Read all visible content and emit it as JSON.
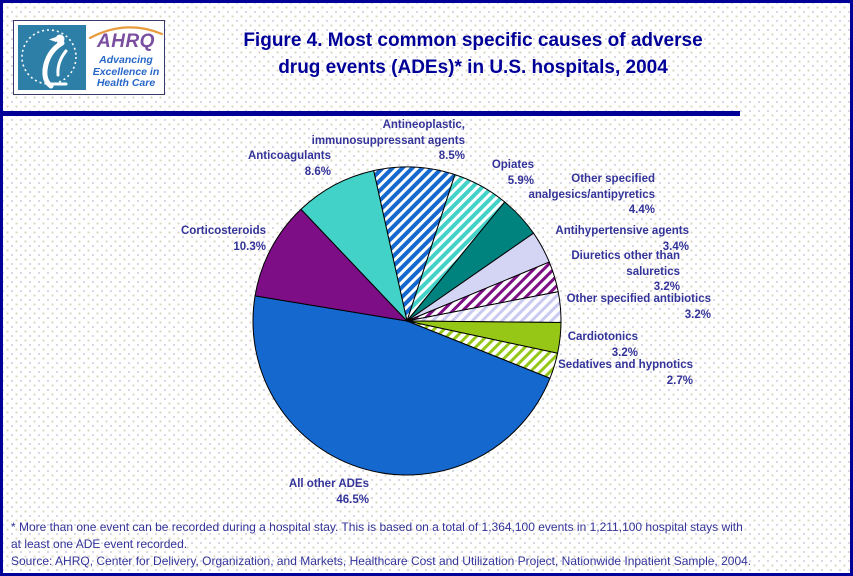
{
  "header": {
    "logo": {
      "ahrq_acronym": "AHRQ",
      "tagline_lines": [
        "Advancing",
        "Excellence in",
        "Health Care"
      ]
    },
    "title_lines": [
      "Figure 4. Most common specific causes of adverse",
      "drug events (ADEs)* in U.S. hospitals, 2004"
    ]
  },
  "colors": {
    "accent_navy": "#000099",
    "label_text": "#333399",
    "seal_teal": "#2E7FA8",
    "ahrq_purple": "#7B4FA0",
    "tagline_blue": "#2767C8",
    "arc_orange": "#E89B3C"
  },
  "chart_data": {
    "type": "pie",
    "title": "Figure 4. Most common specific causes of adverse drug events (ADEs)* in U.S. hospitals, 2004",
    "unit": "percent of ADE events",
    "start_angle_deg_from_12_oclock": -12.5,
    "direction": "clockwise",
    "legend_position": "labels around pie",
    "categories": [
      "Antineoplastic, immunosuppressant agents",
      "Opiates",
      "Other specified analgesics/antipyretics",
      "Antihypertensive agents",
      "Diuretics other than saluretics",
      "Other specified antibiotics",
      "Cardiotonics",
      "Sedatives and hypnotics",
      "All other ADEs",
      "Corticosteroids",
      "Anticoagulants"
    ],
    "values": [
      8.5,
      5.9,
      4.4,
      3.4,
      3.2,
      3.2,
      3.2,
      2.7,
      46.5,
      10.3,
      8.6
    ],
    "slices": [
      {
        "name": "Antineoplastic, immunosuppressant agents",
        "pct": 8.5,
        "fill": "hatch",
        "bg": "#1568CE",
        "stripe": "#FFFFFF"
      },
      {
        "name": "Opiates",
        "pct": 5.9,
        "fill": "hatch",
        "bg": "#43D2C8",
        "stripe": "#FFFFFF"
      },
      {
        "name": "Other specified analgesics/antipyretics",
        "pct": 4.4,
        "fill": "solid",
        "bg": "#00827E"
      },
      {
        "name": "Antihypertensive agents",
        "pct": 3.4,
        "fill": "solid",
        "bg": "#D4D4F4"
      },
      {
        "name": "Diuretics other than saluretics",
        "pct": 3.2,
        "fill": "hatch",
        "bg": "#FFFFFF",
        "stripe": "#7D0E86"
      },
      {
        "name": "Other specified antibiotics",
        "pct": 3.2,
        "fill": "hatch",
        "bg": "#FFFFFF",
        "stripe": "#C9C9F2"
      },
      {
        "name": "Cardiotonics",
        "pct": 3.2,
        "fill": "solid",
        "bg": "#96C716"
      },
      {
        "name": "Sedatives and hypnotics",
        "pct": 2.7,
        "fill": "hatch",
        "bg": "#FFFFFF",
        "stripe": "#96C716"
      },
      {
        "name": "All other ADEs",
        "pct": 46.5,
        "fill": "solid",
        "bg": "#1568CE"
      },
      {
        "name": "Corticosteroids",
        "pct": 10.3,
        "fill": "solid",
        "bg": "#7D0E86"
      },
      {
        "name": "Anticoagulants",
        "pct": 8.6,
        "fill": "solid",
        "bg": "#43D2C8"
      }
    ]
  },
  "labels": {
    "antineoplastic": {
      "lines": [
        "Antineoplastic,",
        "immunosuppressant agents",
        "8.5%"
      ]
    },
    "anticoagulants": {
      "lines": [
        "Anticoagulants",
        "8.6%"
      ]
    },
    "corticosteroids": {
      "lines": [
        "Corticosteroids",
        "10.3%"
      ]
    },
    "opiates": {
      "lines": [
        "Opiates",
        "5.9%"
      ]
    },
    "analgesics": {
      "lines": [
        "Other specified",
        "analgesics/antipyretics",
        "4.4%"
      ]
    },
    "antihypertensive": {
      "lines": [
        "Antihypertensive agents",
        "3.4%"
      ]
    },
    "diuretics": {
      "lines": [
        "Diuretics other than",
        "saluretics",
        "3.2%"
      ]
    },
    "antibiotics": {
      "lines": [
        "Other specified antibiotics",
        "3.2%"
      ]
    },
    "cardiotonics": {
      "lines": [
        "Cardiotonics",
        "3.2%"
      ]
    },
    "sedatives": {
      "lines": [
        "Sedatives and hypnotics",
        "2.7%"
      ]
    },
    "all_other": {
      "lines": [
        "All other ADEs",
        "46.5%"
      ]
    }
  },
  "footnotes": {
    "note_lines": [
      "* More than one event can be recorded during a hospital stay. This is based on a total of 1,364,100 events in 1,211,100 hospital stays with",
      "at least one ADE event recorded."
    ],
    "source": "Source: AHRQ, Center for Delivery, Organization, and Markets, Healthcare Cost and Utilization Project, Nationwide Inpatient Sample, 2004."
  }
}
